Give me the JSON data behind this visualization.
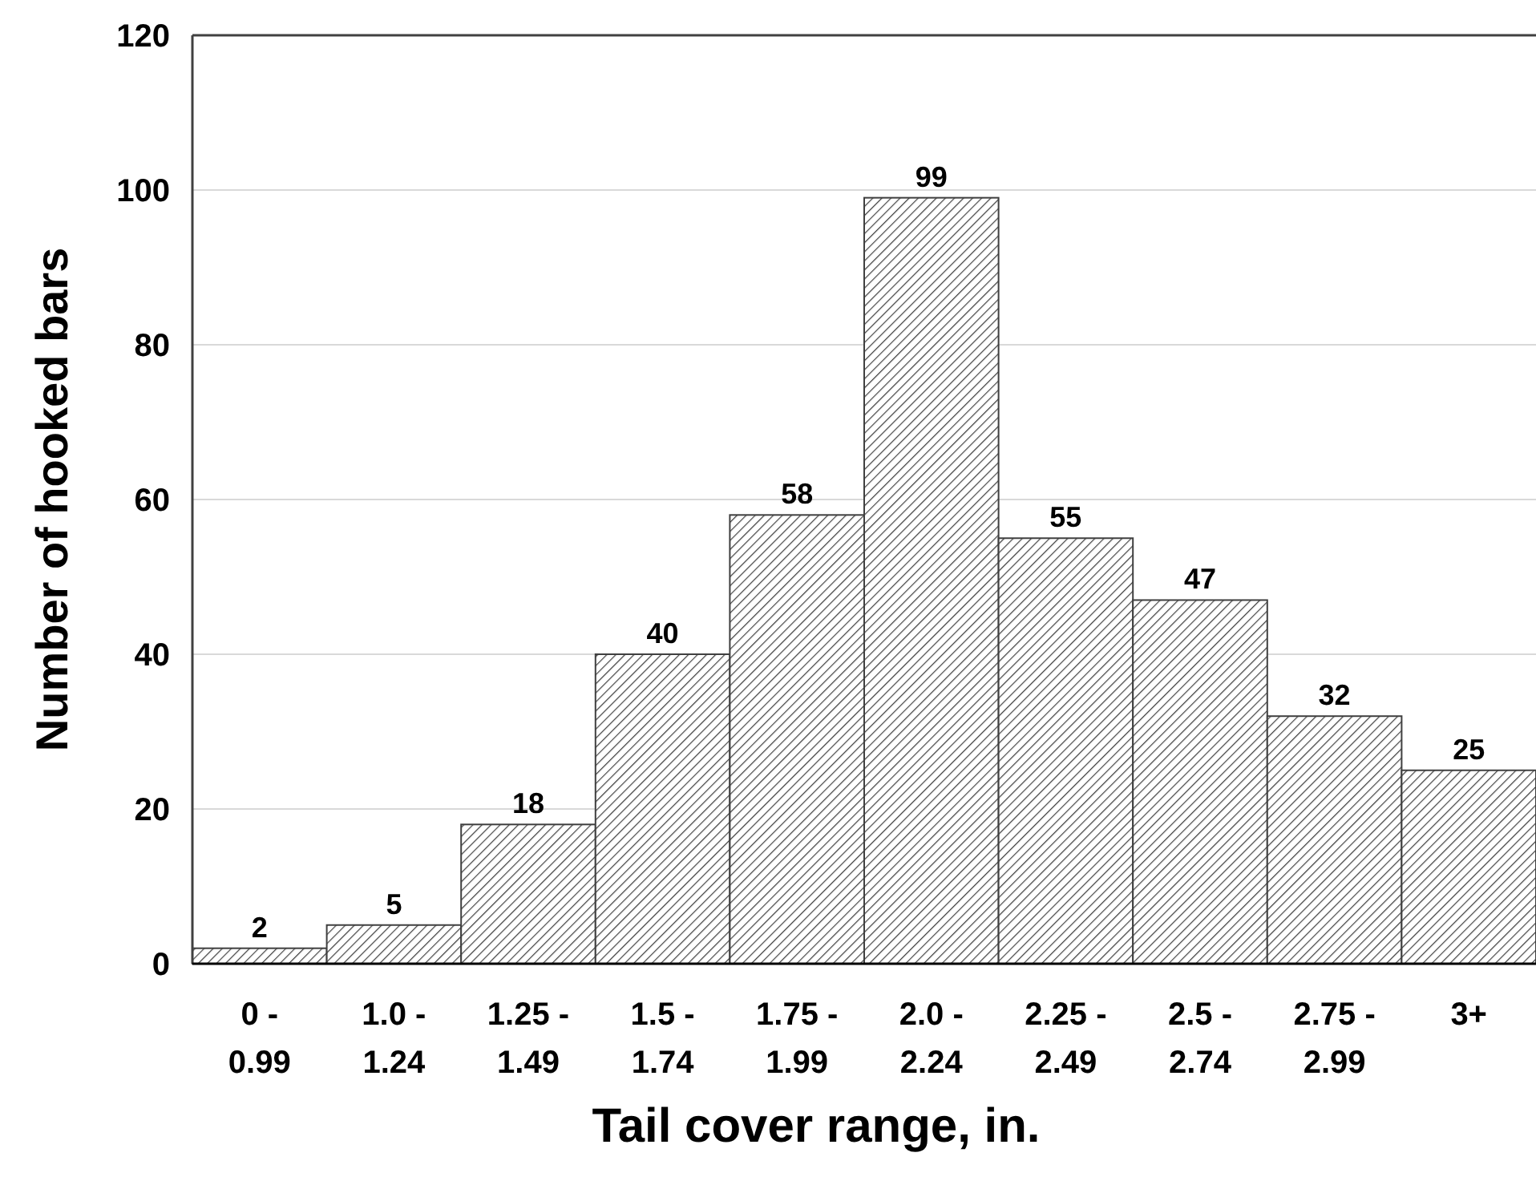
{
  "chart_data": {
    "type": "bar",
    "xlabel": "Tail cover range, in.",
    "ylabel": "Number of hooked bars",
    "categories": [
      "0 - 0.99",
      "1.0 - 1.24",
      "1.25 - 1.49",
      "1.5 - 1.74",
      "1.75 - 1.99",
      "2.0 - 2.24",
      "2.25 - 2.49",
      "2.5 - 2.74",
      "2.75 - 2.99",
      "3+"
    ],
    "values": [
      2,
      5,
      18,
      40,
      58,
      99,
      55,
      47,
      32,
      25
    ],
    "color": "#404040",
    "ylim": [
      0,
      120
    ],
    "yticks": [
      0,
      20,
      40,
      60,
      80,
      100,
      120
    ],
    "grid": "y",
    "data_labels": true
  }
}
